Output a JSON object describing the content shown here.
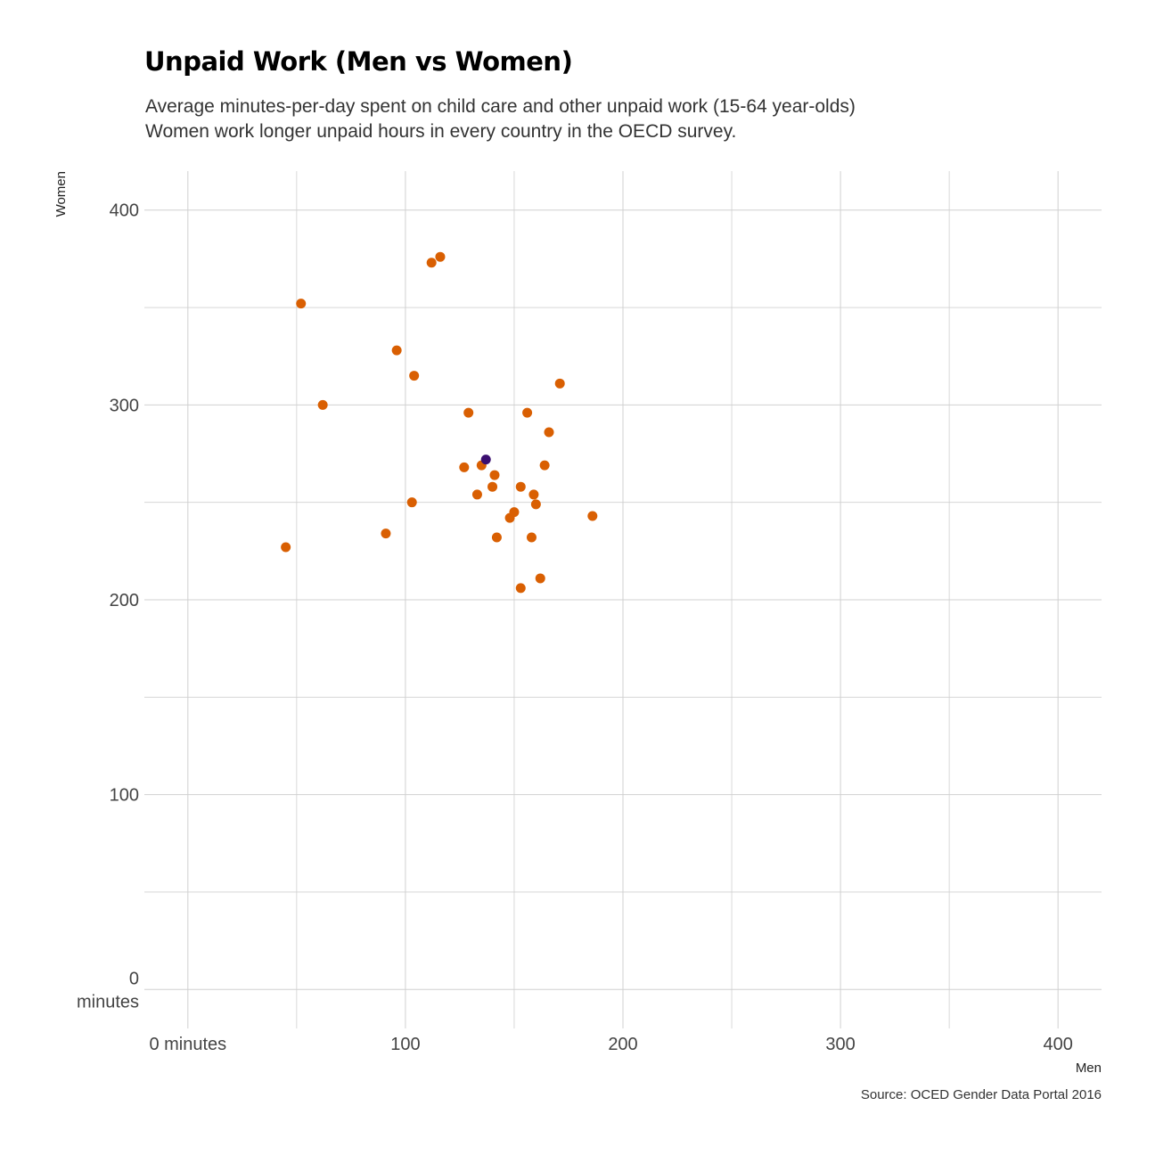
{
  "chart_data": {
    "type": "scatter",
    "title": "Unpaid Work (Men vs Women)",
    "subtitle_lines": [
      "Average minutes-per-day spent on child care and other unpaid work (15-64 year-olds)",
      "Women work longer unpaid hours in every country in the OECD survey."
    ],
    "xlabel": "Men",
    "ylabel": "Women",
    "caption": "Source: OCED Gender Data Portal 2016",
    "xlim": [
      -20,
      420
    ],
    "ylim": [
      -20,
      420
    ],
    "x_ticks": [
      {
        "value": 0,
        "label": "0 minutes"
      },
      {
        "value": 100,
        "label": "100"
      },
      {
        "value": 200,
        "label": "200"
      },
      {
        "value": 300,
        "label": "300"
      },
      {
        "value": 400,
        "label": "400"
      }
    ],
    "y_ticks": [
      {
        "value": 0,
        "label": "0\nminutes"
      },
      {
        "value": 100,
        "label": "100"
      },
      {
        "value": 200,
        "label": "200"
      },
      {
        "value": 300,
        "label": "300"
      },
      {
        "value": 400,
        "label": "400"
      }
    ],
    "minor_gridlines": [
      50,
      150,
      250,
      350
    ],
    "grid": true,
    "colors": {
      "point": "#D95F02",
      "highlight": "#3B0F70",
      "grid": "#D0D0D0",
      "axis_text": "#444444"
    },
    "points": [
      {
        "x": 45,
        "y": 227
      },
      {
        "x": 52,
        "y": 352
      },
      {
        "x": 62,
        "y": 300
      },
      {
        "x": 91,
        "y": 234
      },
      {
        "x": 96,
        "y": 328
      },
      {
        "x": 103,
        "y": 250
      },
      {
        "x": 104,
        "y": 315
      },
      {
        "x": 112,
        "y": 373
      },
      {
        "x": 116,
        "y": 376
      },
      {
        "x": 127,
        "y": 268
      },
      {
        "x": 129,
        "y": 296
      },
      {
        "x": 133,
        "y": 254
      },
      {
        "x": 135,
        "y": 269
      },
      {
        "x": 140,
        "y": 258
      },
      {
        "x": 141,
        "y": 264
      },
      {
        "x": 142,
        "y": 232
      },
      {
        "x": 148,
        "y": 242
      },
      {
        "x": 150,
        "y": 245
      },
      {
        "x": 153,
        "y": 258
      },
      {
        "x": 153,
        "y": 206
      },
      {
        "x": 156,
        "y": 296
      },
      {
        "x": 158,
        "y": 232
      },
      {
        "x": 159,
        "y": 254
      },
      {
        "x": 160,
        "y": 249
      },
      {
        "x": 162,
        "y": 211
      },
      {
        "x": 164,
        "y": 269
      },
      {
        "x": 166,
        "y": 286
      },
      {
        "x": 171,
        "y": 311
      },
      {
        "x": 186,
        "y": 243
      }
    ],
    "highlight_points": [
      {
        "x": 137,
        "y": 272
      }
    ]
  }
}
